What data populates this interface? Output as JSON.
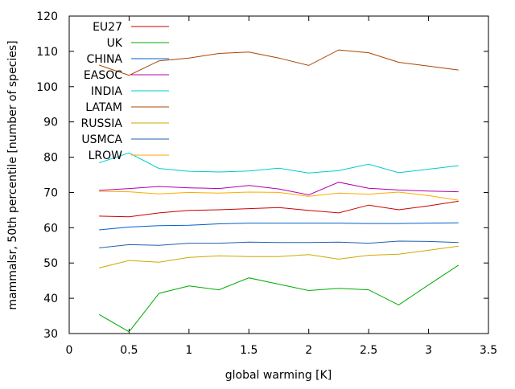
{
  "chart_data": {
    "type": "line",
    "title": "",
    "xlabel": "global warming [K]",
    "ylabel": "mammalsr, 50th percentile [number of species]",
    "xlim": [
      0,
      3.5
    ],
    "ylim": [
      30,
      120
    ],
    "xticks": [
      "0",
      "0.5",
      "1",
      "1.5",
      "2",
      "2.5",
      "3",
      "3.5"
    ],
    "yticks": [
      "30",
      "40",
      "50",
      "60",
      "70",
      "80",
      "90",
      "100",
      "110",
      "120"
    ],
    "grid": false,
    "legend_position": "top-left",
    "x": [
      0.25,
      0.5,
      0.75,
      1.0,
      1.25,
      1.5,
      1.75,
      2.0,
      2.25,
      2.5,
      2.75,
      3.0,
      3.25
    ],
    "series": [
      {
        "name": "EU27",
        "color": "#cc0000",
        "values": [
          63.3,
          63.1,
          64.2,
          64.9,
          65.1,
          65.4,
          65.7,
          64.9,
          64.2,
          66.4,
          65.1,
          66.2,
          67.5
        ]
      },
      {
        "name": "UK",
        "color": "#00aa00",
        "values": [
          35.4,
          30.5,
          41.4,
          43.5,
          42.4,
          45.8,
          44.0,
          42.2,
          42.8,
          42.4,
          38.1,
          43.8,
          49.4
        ]
      },
      {
        "name": "CHINA",
        "color": "#0060cc",
        "values": [
          59.4,
          60.2,
          60.6,
          60.7,
          61.1,
          61.3,
          61.3,
          61.3,
          61.3,
          61.2,
          61.2,
          61.3,
          61.4
        ]
      },
      {
        "name": "EASOC",
        "color": "#b000b0",
        "values": [
          70.6,
          71.1,
          71.7,
          71.3,
          71.1,
          72.0,
          71.0,
          69.3,
          72.9,
          71.2,
          70.7,
          70.4,
          70.2
        ]
      },
      {
        "name": "INDIA",
        "color": "#00cccc",
        "values": [
          78.4,
          81.2,
          76.8,
          76.0,
          75.8,
          76.1,
          76.9,
          75.5,
          76.2,
          78.0,
          75.6,
          76.6,
          77.6
        ]
      },
      {
        "name": "LATAM",
        "color": "#aa4400",
        "values": [
          106.1,
          103.2,
          107.3,
          108.1,
          109.4,
          109.8,
          108.1,
          106.0,
          110.4,
          109.6,
          106.9,
          105.8,
          104.7
        ]
      },
      {
        "name": "RUSSIA",
        "color": "#ccaa00",
        "values": [
          48.6,
          50.7,
          50.2,
          51.6,
          52.0,
          51.8,
          51.8,
          52.4,
          51.1,
          52.2,
          52.5,
          53.6,
          54.8
        ]
      },
      {
        "name": "USMCA",
        "color": "#2060b0",
        "values": [
          54.3,
          55.2,
          55.0,
          55.6,
          55.6,
          55.9,
          55.8,
          55.8,
          55.9,
          55.6,
          56.2,
          56.1,
          55.8
        ]
      },
      {
        "name": "LROW",
        "color": "#ffaa00",
        "values": [
          70.3,
          70.2,
          69.6,
          70.0,
          69.8,
          70.1,
          70.0,
          68.9,
          69.8,
          69.5,
          70.1,
          69.1,
          67.8
        ]
      }
    ]
  }
}
